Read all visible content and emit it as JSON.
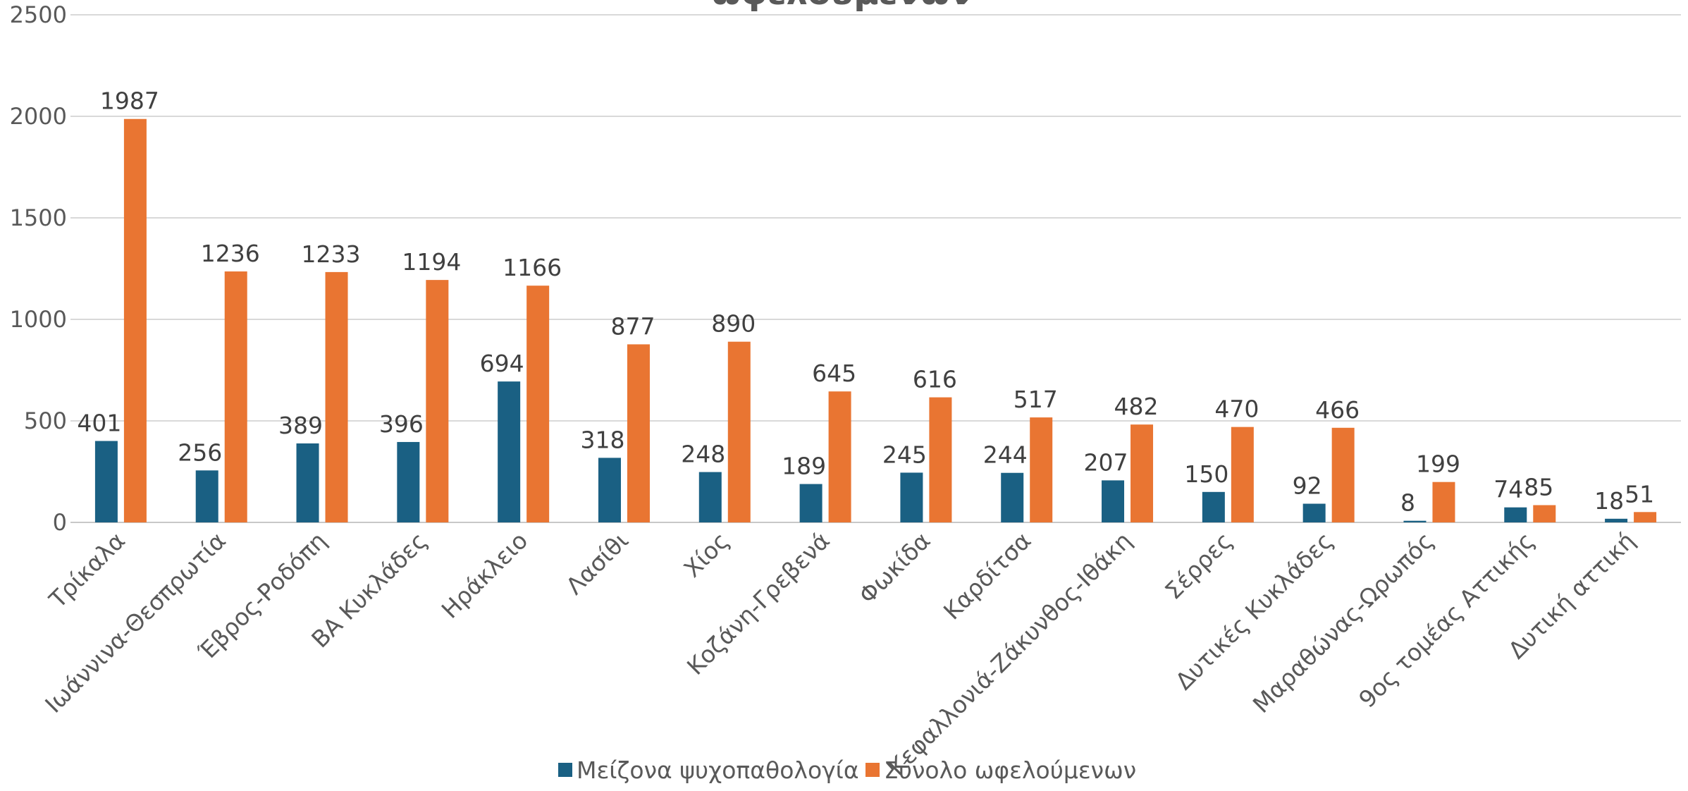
{
  "chart_data": {
    "type": "bar",
    "title": "ωφελούμενων",
    "categories": [
      "Τρίκαλα",
      "Ιωάννινα-Θεσπρωτία",
      "Έβρος-Ροδόπη",
      "ΒΑ Κυκλάδες",
      "Ηράκλειο",
      "Λασίθι",
      "Χίος",
      "Κοζάνη-Γρεβενά",
      "Φωκίδα",
      "Καρδίτσα",
      "Κεφαλλονιά-Ζάκυνθος-Ιθάκη",
      "Σέρρες",
      "Δυτικές Κυκλάδες",
      "Μαραθώνας-Ωρωπός",
      "9ος τομέας Αττικής",
      "Δυτική αττική"
    ],
    "series": [
      {
        "name": "Μείζονα ψυχοπαθολογία",
        "color": "#1a6083",
        "values": [
          401,
          256,
          389,
          396,
          694,
          318,
          248,
          189,
          245,
          244,
          207,
          150,
          92,
          8,
          74,
          18
        ]
      },
      {
        "name": "Σύνολο ωφελούμενων",
        "color": "#e97532",
        "values": [
          1987,
          1236,
          1233,
          1194,
          1166,
          877,
          890,
          645,
          616,
          517,
          482,
          470,
          466,
          199,
          85,
          51
        ]
      }
    ],
    "ylim": [
      0,
      2500
    ],
    "yticks": [
      0,
      500,
      1000,
      1500,
      2000,
      2500
    ],
    "grid": true,
    "legend": "bottom-center",
    "xlabel": "",
    "ylabel": ""
  }
}
